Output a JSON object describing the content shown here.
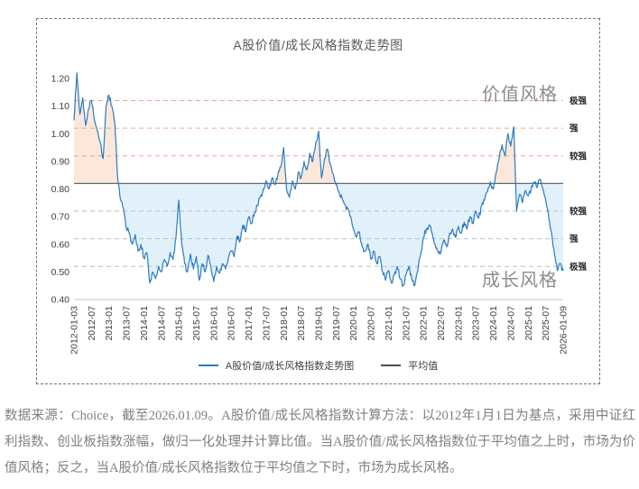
{
  "title": "A股价值/成长风格指数走势图",
  "region_labels": {
    "above": "价值风格",
    "below": "成长风格"
  },
  "legend": [
    {
      "label": "A股价值/成长风格指数走势图",
      "marker": "line",
      "color": "#2b7bc2"
    },
    {
      "label": "平均值",
      "marker": "line",
      "color": "#4d4d4d"
    }
  ],
  "caption": "数据来源：Choice，截至2026.01.09。A股价值/成长风格指数计算方法：以2012年1月1日为基点，采用中证红利指数、创业板指数涨幅，做归一化处理并计算比值。当A股价值/成长风格指数位于平均值之上时，市场为价值风格；反之，当A股价值/成长风格指数位于平均值之下时，市场为成长风格。",
  "chart_data": {
    "type": "line",
    "title": "A股价值/成长风格指数走势图",
    "x_unit": "month",
    "x_start": "2012-01-03",
    "x_end": "2026-01-09",
    "x_tick_labels": [
      "2012-01-03",
      "2012-07",
      "2013-01",
      "2013-07",
      "2014-01",
      "2014-07",
      "2015-01",
      "2015-07",
      "2016-01",
      "2016-07",
      "2017-01",
      "2017-07",
      "2018-01",
      "2018-07",
      "2019-01",
      "2019-07",
      "2020-01",
      "2020-07",
      "2021-01",
      "2021-07",
      "2022-01",
      "2022-07",
      "2023-01",
      "2023-07",
      "2024-01",
      "2024-07",
      "2025-01",
      "2025-07",
      "2026-01-09"
    ],
    "ylim": [
      0.4,
      1.2
    ],
    "y_ticks": [
      0.4,
      0.5,
      0.6,
      0.7,
      0.8,
      0.9,
      1.0,
      1.1,
      1.2
    ],
    "average_value": 0.82,
    "zones_above": [
      {
        "value": 1.12,
        "label": "极强"
      },
      {
        "value": 1.02,
        "label": "强"
      },
      {
        "value": 0.92,
        "label": "较强"
      }
    ],
    "zones_below": [
      {
        "value": 0.72,
        "label": "较强"
      },
      {
        "value": 0.62,
        "label": "强"
      },
      {
        "value": 0.52,
        "label": "极强"
      }
    ],
    "series": [
      {
        "name": "A股价值/成长风格指数走势图",
        "monthly_values": [
          1.05,
          1.22,
          1.07,
          1.13,
          1.03,
          1.09,
          1.12,
          1.05,
          1.01,
          0.97,
          0.91,
          1.1,
          1.14,
          1.1,
          1.04,
          0.84,
          0.76,
          0.73,
          0.655,
          0.64,
          0.6,
          0.635,
          0.575,
          0.6,
          0.55,
          0.57,
          0.46,
          0.5,
          0.475,
          0.52,
          0.5,
          0.545,
          0.52,
          0.57,
          0.545,
          0.62,
          0.76,
          0.6,
          0.53,
          0.5,
          0.565,
          0.51,
          0.555,
          0.47,
          0.53,
          0.5,
          0.56,
          0.52,
          0.465,
          0.52,
          0.495,
          0.53,
          0.51,
          0.55,
          0.575,
          0.555,
          0.63,
          0.61,
          0.67,
          0.645,
          0.7,
          0.675,
          0.715,
          0.74,
          0.77,
          0.8,
          0.83,
          0.8,
          0.84,
          0.815,
          0.85,
          0.88,
          0.95,
          0.8,
          0.77,
          0.83,
          0.8,
          0.86,
          0.84,
          0.9,
          0.87,
          0.93,
          0.9,
          0.965,
          1.01,
          0.84,
          0.91,
          0.945,
          0.89,
          0.855,
          0.815,
          0.79,
          0.77,
          0.745,
          0.73,
          0.7,
          0.655,
          0.625,
          0.645,
          0.59,
          0.575,
          0.6,
          0.545,
          0.575,
          0.53,
          0.555,
          0.5,
          0.47,
          0.505,
          0.46,
          0.49,
          0.52,
          0.475,
          0.45,
          0.49,
          0.52,
          0.475,
          0.45,
          0.5,
          0.56,
          0.625,
          0.655,
          0.67,
          0.64,
          0.6,
          0.575,
          0.57,
          0.615,
          0.59,
          0.64,
          0.655,
          0.625,
          0.665,
          0.64,
          0.68,
          0.655,
          0.7,
          0.675,
          0.72,
          0.695,
          0.74,
          0.76,
          0.79,
          0.825,
          0.8,
          0.86,
          0.91,
          0.96,
          0.92,
          1.0,
          0.955,
          1.025,
          0.72,
          0.78,
          0.75,
          0.795,
          0.775,
          0.8,
          0.825,
          0.805,
          0.835,
          0.8,
          0.76,
          0.7,
          0.64,
          0.565,
          0.505,
          0.53,
          0.505
        ]
      }
    ],
    "grid": "horizontal-dashed",
    "legend_position": "bottom-center",
    "colors": {
      "series_line": "#2b7bc2",
      "average_line": "#5f6a72",
      "fill_above_average": "#fce8da",
      "fill_below_average": "#e2f0fa",
      "dashed_above": "#f0a78b",
      "dashed_below": "#aec6d2",
      "baseline": "#c9c9c9",
      "axis_text": "#404040",
      "zone_text": "#262626"
    }
  }
}
